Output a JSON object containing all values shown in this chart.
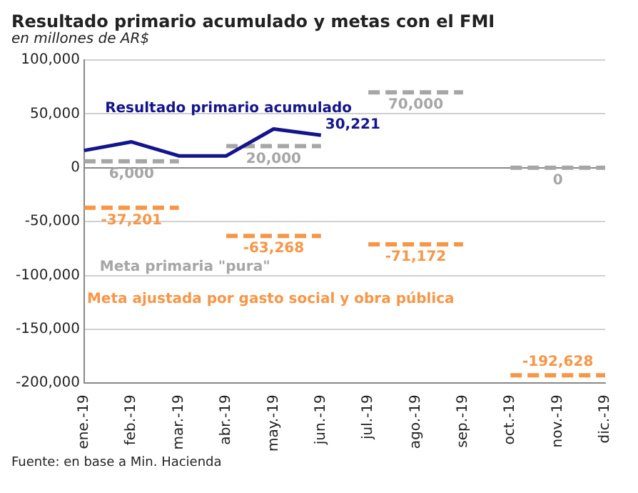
{
  "chart_data": {
    "type": "line",
    "title": "Resultado primario acumulado y metas con el FMI",
    "subtitle": "en millones de AR$",
    "categories": [
      "ene.-19",
      "feb.-19",
      "mar.-19",
      "abr.-19",
      "may.-19",
      "jun.-19",
      "jul.-19",
      "ago.-19",
      "sep.-19",
      "oct.-19",
      "nov.-19",
      "dic.-19"
    ],
    "series": [
      {
        "name": "Resultado primario acumulado",
        "color": "#14148c",
        "line_style": "solid",
        "values": [
          16000,
          24000,
          11000,
          11000,
          36000,
          30221,
          null,
          null,
          null,
          null,
          null,
          null
        ],
        "value_labels": [
          null,
          null,
          null,
          null,
          null,
          "30,221",
          null,
          null,
          null,
          null,
          null,
          null
        ]
      },
      {
        "name": "Meta primaria \"pura\"",
        "color": "#a6a6a6",
        "line_style": "dashed",
        "values": [
          6000,
          6000,
          6000,
          20000,
          20000,
          20000,
          70000,
          70000,
          70000,
          0,
          0,
          0
        ],
        "value_labels": [
          null,
          "6,000",
          null,
          null,
          "20,000",
          null,
          null,
          "70,000",
          null,
          null,
          "0",
          null
        ]
      },
      {
        "name": "Meta ajustada por gasto social y obra pública",
        "color": "#f79646",
        "line_style": "dashed",
        "values": [
          -37201,
          -37201,
          -37201,
          -63268,
          -63268,
          -63268,
          -71172,
          -71172,
          -71172,
          -192628,
          -192628,
          -192628
        ],
        "value_labels": [
          null,
          "-37,201",
          null,
          null,
          "-63,268",
          null,
          null,
          "-71,172",
          null,
          null,
          "-192,628",
          null
        ]
      }
    ],
    "ylim": [
      -200000,
      100000
    ],
    "yticks": [
      {
        "value": -200000,
        "label": "-200,000"
      },
      {
        "value": -150000,
        "label": "-150,000"
      },
      {
        "value": -100000,
        "label": "-100,000"
      },
      {
        "value": -50000,
        "label": "-50,000"
      },
      0,
      {
        "value": 50000,
        "label": "50,000"
      },
      {
        "value": 100000,
        "label": "100,000"
      }
    ],
    "grid": "y",
    "legend": false,
    "marker": "none",
    "annotations": [
      "Fuente: en base a Min. Hacienda"
    ]
  }
}
